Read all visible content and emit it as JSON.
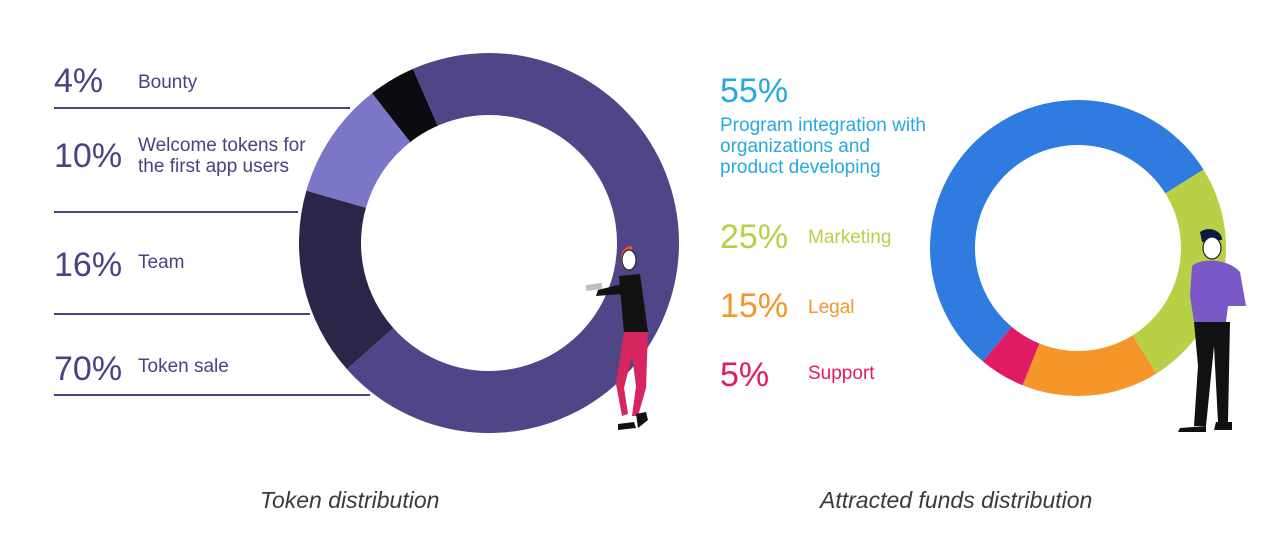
{
  "chart_data": [
    {
      "type": "donut",
      "title": "Token distribution",
      "slices": [
        {
          "percent_label": "4%",
          "label": "Bounty",
          "value": 4,
          "color": "#0b0b10"
        },
        {
          "percent_label": "10%",
          "label": "Welcome tokens for the first app users",
          "value": 10,
          "color": "#7b76c6"
        },
        {
          "percent_label": "16%",
          "label": "Team",
          "value": 16,
          "color": "#2b2547"
        },
        {
          "percent_label": "70%",
          "label": "Token sale",
          "value": 70,
          "color": "#4e4687"
        }
      ]
    },
    {
      "type": "donut",
      "title": "Attracted funds distribution",
      "slices": [
        {
          "percent_label": "55%",
          "label": "Program integration with organizations and product developing",
          "value": 55,
          "color": "#2f7be0"
        },
        {
          "percent_label": "25%",
          "label": "Marketing",
          "value": 25,
          "color": "#b8d045"
        },
        {
          "percent_label": "15%",
          "label": "Legal",
          "value": 15,
          "color": "#f5952a"
        },
        {
          "percent_label": "5%",
          "label": "Support",
          "value": 5,
          "color": "#e01a63"
        }
      ]
    }
  ],
  "label_colors": {
    "token": "#4a4282",
    "funds": [
      "#27a8e0",
      "#b8d045",
      "#f5952a",
      "#e01a63"
    ]
  }
}
